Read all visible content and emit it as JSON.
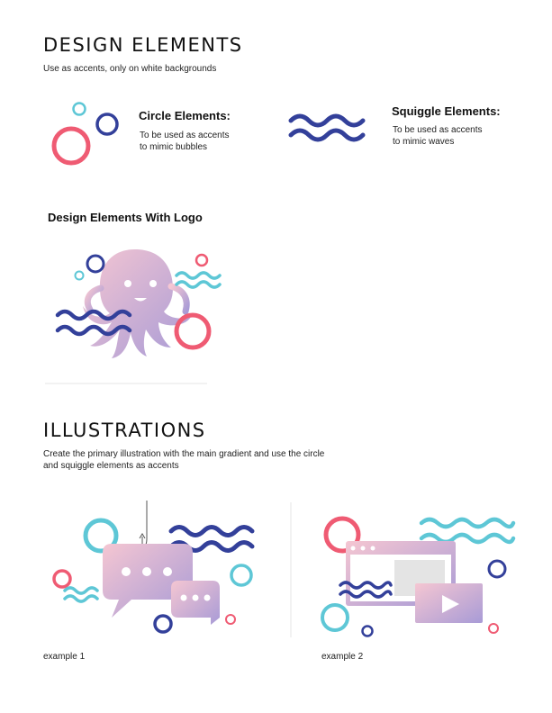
{
  "design_elements": {
    "title": "DESIGN ELEMENTS",
    "subtitle": "Use as accents, only on white backgrounds",
    "circle": {
      "heading": "Circle Elements:",
      "desc_line1": "To be used as accents",
      "desc_line2": "to mimic bubbles"
    },
    "squiggle": {
      "heading": "Squiggle Elements:",
      "desc_line1": "To be used as accents",
      "desc_line2": "to mimic waves"
    },
    "logo_heading": "Design Elements With Logo"
  },
  "illustrations": {
    "title": "ILLUSTRATIONS",
    "desc_line1": "Create the primary illustration with the main gradient and use the circle",
    "desc_line2": "and squiggle elements as accents",
    "example1_caption": "example 1",
    "example2_caption": "example 2"
  },
  "colors": {
    "navy": "#33409a",
    "coral": "#ef5b73",
    "teal": "#5ec7d6",
    "gradient_start": "#f5c6d2",
    "gradient_end": "#a89bd6",
    "divider": "#e6e6e6"
  }
}
